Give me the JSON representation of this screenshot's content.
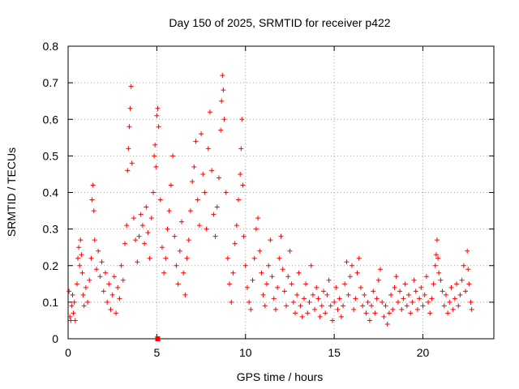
{
  "chart_data": {
    "type": "scatter",
    "title": "Day 150 of 2025, SRMTID for receiver p422",
    "xlabel": "GPS time / hours",
    "ylabel": "SRMTID / TECUs",
    "xlim": [
      0,
      24
    ],
    "ylim": [
      0,
      0.8
    ],
    "xticks": [
      0,
      5,
      10,
      15,
      20
    ],
    "yticks": [
      0,
      0.1,
      0.2,
      0.3,
      0.4,
      0.5,
      0.6,
      0.7,
      0.8
    ],
    "xtick_labels": [
      "0",
      "5",
      "10",
      "15",
      "20"
    ],
    "ytick_labels": [
      "0",
      "0.1",
      "0.2",
      "0.3",
      "0.4",
      "0.5",
      "0.6",
      "0.7",
      "0.8"
    ],
    "grid": true,
    "marker": "plus",
    "color": "#ff0000",
    "series": [
      {
        "name": "SRMTID",
        "points": [
          [
            0.05,
            0.13
          ],
          [
            0.1,
            0.06
          ],
          [
            0.15,
            0.05
          ],
          [
            0.2,
            0.09
          ],
          [
            0.25,
            0.12
          ],
          [
            0.3,
            0.07
          ],
          [
            0.35,
            0.1
          ],
          [
            0.4,
            0.05
          ],
          [
            0.5,
            0.15
          ],
          [
            0.55,
            0.22
          ],
          [
            0.6,
            0.25
          ],
          [
            0.65,
            0.2
          ],
          [
            0.7,
            0.27
          ],
          [
            0.75,
            0.23
          ],
          [
            0.8,
            0.18
          ],
          [
            0.85,
            0.12
          ],
          [
            0.9,
            0.09
          ],
          [
            1.0,
            0.14
          ],
          [
            1.1,
            0.1
          ],
          [
            1.2,
            0.16
          ],
          [
            1.3,
            0.22
          ],
          [
            1.35,
            0.38
          ],
          [
            1.4,
            0.42
          ],
          [
            1.45,
            0.35
          ],
          [
            1.5,
            0.27
          ],
          [
            1.6,
            0.19
          ],
          [
            1.7,
            0.24
          ],
          [
            1.8,
            0.17
          ],
          [
            1.9,
            0.21
          ],
          [
            2.0,
            0.13
          ],
          [
            2.1,
            0.18
          ],
          [
            2.2,
            0.1
          ],
          [
            2.3,
            0.15
          ],
          [
            2.4,
            0.08
          ],
          [
            2.5,
            0.12
          ],
          [
            2.6,
            0.17
          ],
          [
            2.7,
            0.07
          ],
          [
            2.8,
            0.14
          ],
          [
            2.9,
            0.11
          ],
          [
            3.0,
            0.2
          ],
          [
            3.1,
            0.16
          ],
          [
            3.2,
            0.26
          ],
          [
            3.3,
            0.31
          ],
          [
            3.35,
            0.46
          ],
          [
            3.4,
            0.52
          ],
          [
            3.45,
            0.58
          ],
          [
            3.5,
            0.63
          ],
          [
            3.55,
            0.69
          ],
          [
            3.6,
            0.48
          ],
          [
            3.7,
            0.33
          ],
          [
            3.8,
            0.27
          ],
          [
            3.9,
            0.21
          ],
          [
            4.0,
            0.28
          ],
          [
            4.1,
            0.34
          ],
          [
            4.2,
            0.31
          ],
          [
            4.3,
            0.26
          ],
          [
            4.4,
            0.36
          ],
          [
            4.5,
            0.29
          ],
          [
            4.6,
            0.22
          ],
          [
            4.7,
            0.33
          ],
          [
            4.8,
            0.4
          ],
          [
            4.85,
            0.5
          ],
          [
            4.9,
            0.53
          ],
          [
            4.95,
            0.47
          ],
          [
            5.0,
            0.61
          ],
          [
            5.05,
            0.63
          ],
          [
            5.1,
            0.58
          ],
          [
            5.2,
            0.38
          ],
          [
            5.3,
            0.25
          ],
          [
            5.4,
            0.18
          ],
          [
            5.5,
            0.22
          ],
          [
            5.6,
            0.3
          ],
          [
            5.7,
            0.35
          ],
          [
            5.8,
            0.42
          ],
          [
            5.9,
            0.5
          ],
          [
            6.0,
            0.28
          ],
          [
            6.1,
            0.2
          ],
          [
            6.2,
            0.15
          ],
          [
            6.3,
            0.24
          ],
          [
            6.4,
            0.32
          ],
          [
            6.5,
            0.18
          ],
          [
            6.6,
            0.12
          ],
          [
            6.7,
            0.22
          ],
          [
            6.8,
            0.27
          ],
          [
            6.9,
            0.35
          ],
          [
            7.0,
            0.43
          ],
          [
            7.1,
            0.47
          ],
          [
            7.2,
            0.54
          ],
          [
            7.3,
            0.38
          ],
          [
            7.4,
            0.31
          ],
          [
            7.5,
            0.56
          ],
          [
            7.6,
            0.45
          ],
          [
            7.7,
            0.4
          ],
          [
            7.8,
            0.3
          ],
          [
            7.9,
            0.52
          ],
          [
            8.0,
            0.62
          ],
          [
            8.1,
            0.46
          ],
          [
            8.2,
            0.34
          ],
          [
            8.3,
            0.28
          ],
          [
            8.4,
            0.36
          ],
          [
            8.5,
            0.44
          ],
          [
            8.6,
            0.57
          ],
          [
            8.65,
            0.65
          ],
          [
            8.7,
            0.72
          ],
          [
            8.75,
            0.68
          ],
          [
            8.8,
            0.6
          ],
          [
            8.9,
            0.4
          ],
          [
            9.0,
            0.22
          ],
          [
            9.1,
            0.15
          ],
          [
            9.2,
            0.1
          ],
          [
            9.3,
            0.18
          ],
          [
            9.4,
            0.26
          ],
          [
            9.5,
            0.31
          ],
          [
            9.6,
            0.38
          ],
          [
            9.7,
            0.45
          ],
          [
            9.75,
            0.52
          ],
          [
            9.8,
            0.6
          ],
          [
            9.85,
            0.42
          ],
          [
            9.9,
            0.28
          ],
          [
            10.0,
            0.2
          ],
          [
            10.1,
            0.14
          ],
          [
            10.2,
            0.1
          ],
          [
            10.3,
            0.08
          ],
          [
            10.4,
            0.16
          ],
          [
            10.5,
            0.22
          ],
          [
            10.6,
            0.3
          ],
          [
            10.7,
            0.33
          ],
          [
            10.8,
            0.24
          ],
          [
            10.9,
            0.18
          ],
          [
            11.0,
            0.12
          ],
          [
            11.1,
            0.09
          ],
          [
            11.2,
            0.15
          ],
          [
            11.3,
            0.2
          ],
          [
            11.4,
            0.27
          ],
          [
            11.5,
            0.17
          ],
          [
            11.6,
            0.11
          ],
          [
            11.7,
            0.08
          ],
          [
            11.8,
            0.14
          ],
          [
            11.9,
            0.22
          ],
          [
            12.0,
            0.28
          ],
          [
            12.1,
            0.19
          ],
          [
            12.2,
            0.13
          ],
          [
            12.3,
            0.09
          ],
          [
            12.4,
            0.17
          ],
          [
            12.5,
            0.24
          ],
          [
            12.6,
            0.15
          ],
          [
            12.7,
            0.1
          ],
          [
            12.8,
            0.07
          ],
          [
            12.9,
            0.12
          ],
          [
            13.0,
            0.18
          ],
          [
            13.1,
            0.09
          ],
          [
            13.2,
            0.06
          ],
          [
            13.3,
            0.11
          ],
          [
            13.4,
            0.15
          ],
          [
            13.5,
            0.07
          ],
          [
            13.6,
            0.1
          ],
          [
            13.7,
            0.2
          ],
          [
            13.8,
            0.12
          ],
          [
            13.9,
            0.08
          ],
          [
            14.0,
            0.14
          ],
          [
            14.1,
            0.11
          ],
          [
            14.2,
            0.06
          ],
          [
            14.3,
            0.09
          ],
          [
            14.4,
            0.13
          ],
          [
            14.5,
            0.07
          ],
          [
            14.6,
            0.12
          ],
          [
            14.7,
            0.16
          ],
          [
            14.8,
            0.09
          ],
          [
            14.9,
            0.05
          ],
          [
            15.0,
            0.1
          ],
          [
            15.1,
            0.14
          ],
          [
            15.2,
            0.08
          ],
          [
            15.3,
            0.11
          ],
          [
            15.4,
            0.06
          ],
          [
            15.5,
            0.09
          ],
          [
            15.6,
            0.15
          ],
          [
            15.7,
            0.21
          ],
          [
            15.8,
            0.12
          ],
          [
            15.9,
            0.17
          ],
          [
            16.0,
            0.2
          ],
          [
            16.1,
            0.08
          ],
          [
            16.2,
            0.11
          ],
          [
            16.3,
            0.18
          ],
          [
            16.4,
            0.22
          ],
          [
            16.5,
            0.14
          ],
          [
            16.6,
            0.09
          ],
          [
            16.7,
            0.12
          ],
          [
            16.8,
            0.07
          ],
          [
            16.9,
            0.1
          ],
          [
            17.0,
            0.05
          ],
          [
            17.1,
            0.09
          ],
          [
            17.2,
            0.13
          ],
          [
            17.3,
            0.07
          ],
          [
            17.4,
            0.11
          ],
          [
            17.5,
            0.16
          ],
          [
            17.6,
            0.19
          ],
          [
            17.7,
            0.1
          ],
          [
            17.8,
            0.06
          ],
          [
            17.9,
            0.09
          ],
          [
            18.0,
            0.04
          ],
          [
            18.1,
            0.07
          ],
          [
            18.2,
            0.12
          ],
          [
            18.3,
            0.08
          ],
          [
            18.4,
            0.14
          ],
          [
            18.5,
            0.17
          ],
          [
            18.6,
            0.1
          ],
          [
            18.7,
            0.13
          ],
          [
            18.8,
            0.08
          ],
          [
            18.9,
            0.11
          ],
          [
            19.0,
            0.15
          ],
          [
            19.1,
            0.09
          ],
          [
            19.2,
            0.12
          ],
          [
            19.3,
            0.07
          ],
          [
            19.4,
            0.1
          ],
          [
            19.5,
            0.16
          ],
          [
            19.6,
            0.13
          ],
          [
            19.7,
            0.08
          ],
          [
            19.8,
            0.11
          ],
          [
            19.9,
            0.14
          ],
          [
            20.0,
            0.09
          ],
          [
            20.1,
            0.12
          ],
          [
            20.2,
            0.17
          ],
          [
            20.3,
            0.1
          ],
          [
            20.4,
            0.07
          ],
          [
            20.5,
            0.11
          ],
          [
            20.6,
            0.15
          ],
          [
            20.7,
            0.2
          ],
          [
            20.75,
            0.23
          ],
          [
            20.8,
            0.27
          ],
          [
            20.85,
            0.22
          ],
          [
            20.9,
            0.18
          ],
          [
            21.0,
            0.16
          ],
          [
            21.1,
            0.13
          ],
          [
            21.2,
            0.09
          ],
          [
            21.3,
            0.12
          ],
          [
            21.4,
            0.07
          ],
          [
            21.5,
            0.1
          ],
          [
            21.6,
            0.14
          ],
          [
            21.7,
            0.08
          ],
          [
            21.8,
            0.11
          ],
          [
            21.9,
            0.15
          ],
          [
            22.0,
            0.09
          ],
          [
            22.1,
            0.12
          ],
          [
            22.2,
            0.16
          ],
          [
            22.3,
            0.2
          ],
          [
            22.4,
            0.13
          ],
          [
            22.5,
            0.24
          ],
          [
            22.55,
            0.19
          ],
          [
            22.6,
            0.15
          ],
          [
            22.7,
            0.1
          ],
          [
            22.75,
            0.08
          ]
        ]
      }
    ],
    "markers": [
      {
        "name": "zero-marker",
        "x": 5.05,
        "y": 0.0,
        "shape": "square"
      }
    ]
  }
}
